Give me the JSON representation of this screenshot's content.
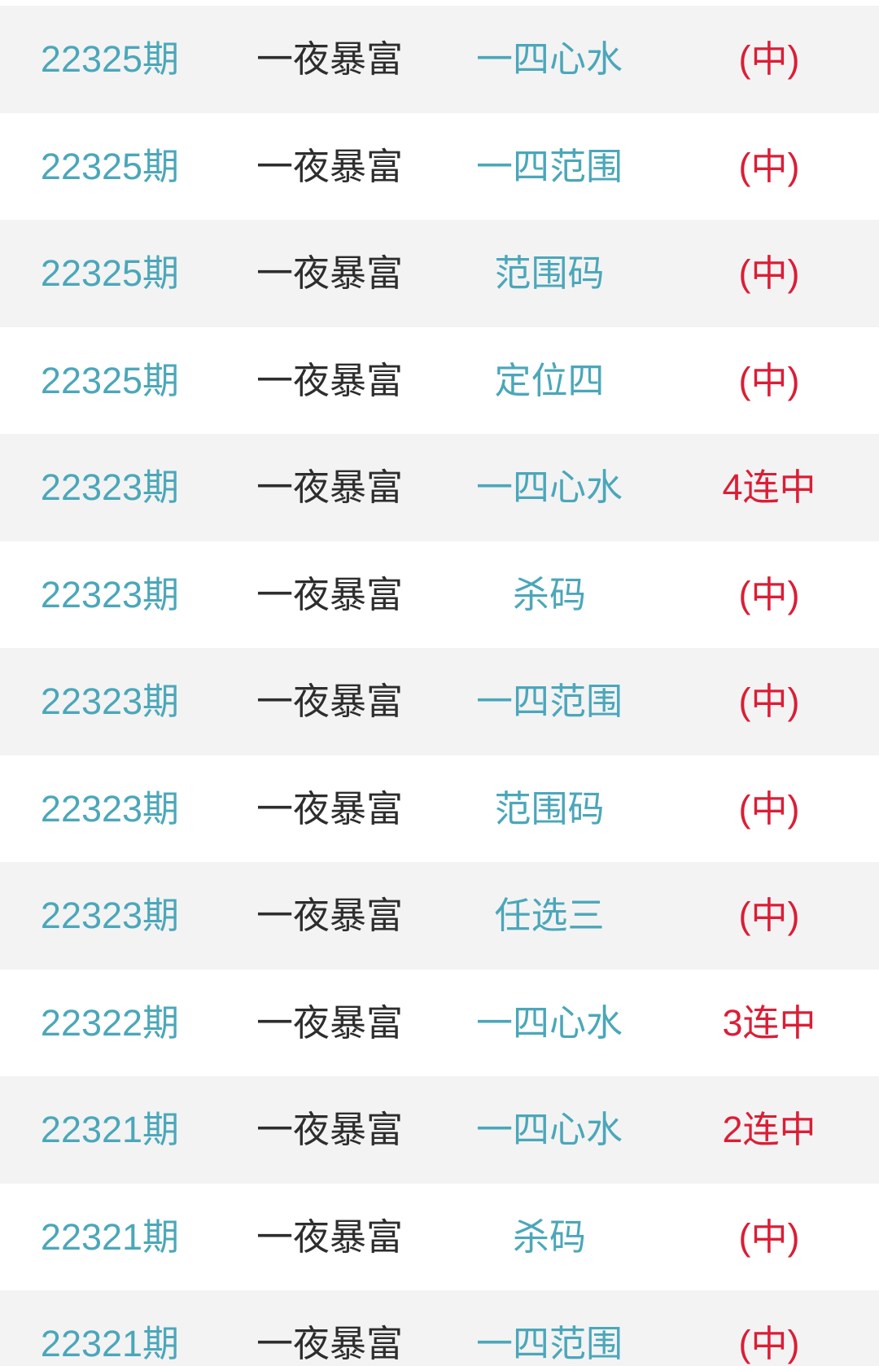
{
  "colors": {
    "accent_teal": "#4BA7B9",
    "accent_red": "#DB1E36",
    "text_dark": "#2D2D2D",
    "row_alt_bg": "#F3F3F4",
    "row_bg": "#FFFFFF"
  },
  "list": {
    "rows": [
      {
        "period": "22325期",
        "tipster": "一夜暴富",
        "play": "一四心水",
        "result": "(中)"
      },
      {
        "period": "22325期",
        "tipster": "一夜暴富",
        "play": "一四范围",
        "result": "(中)"
      },
      {
        "period": "22325期",
        "tipster": "一夜暴富",
        "play": "范围码",
        "result": "(中)"
      },
      {
        "period": "22325期",
        "tipster": "一夜暴富",
        "play": "定位四",
        "result": "(中)"
      },
      {
        "period": "22323期",
        "tipster": "一夜暴富",
        "play": "一四心水",
        "result": "4连中"
      },
      {
        "period": "22323期",
        "tipster": "一夜暴富",
        "play": "杀码",
        "result": "(中)"
      },
      {
        "period": "22323期",
        "tipster": "一夜暴富",
        "play": "一四范围",
        "result": "(中)"
      },
      {
        "period": "22323期",
        "tipster": "一夜暴富",
        "play": "范围码",
        "result": "(中)"
      },
      {
        "period": "22323期",
        "tipster": "一夜暴富",
        "play": "任选三",
        "result": "(中)"
      },
      {
        "period": "22322期",
        "tipster": "一夜暴富",
        "play": "一四心水",
        "result": "3连中"
      },
      {
        "period": "22321期",
        "tipster": "一夜暴富",
        "play": "一四心水",
        "result": "2连中"
      },
      {
        "period": "22321期",
        "tipster": "一夜暴富",
        "play": "杀码",
        "result": "(中)"
      },
      {
        "period": "22321期",
        "tipster": "一夜暴富",
        "play": "一四范围",
        "result": "(中)"
      }
    ]
  }
}
